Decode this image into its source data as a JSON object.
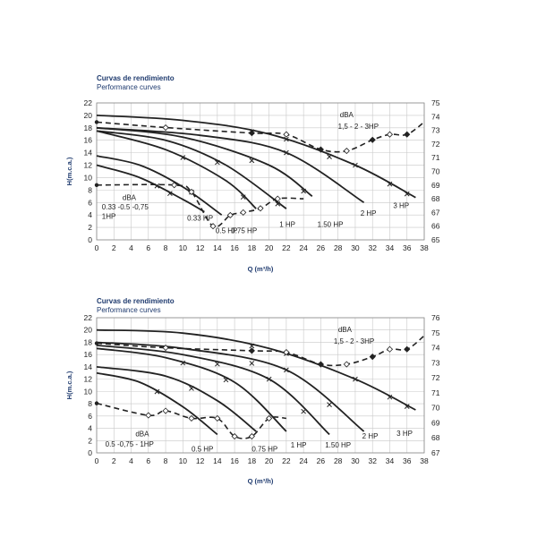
{
  "chart_data": [
    {
      "type": "line",
      "title": "Curvas de rendimiento",
      "subtitle": "Performance curves",
      "xlabel": "Q (m³/h)",
      "ylabel": "H(m.c.a.)",
      "xlim": [
        0,
        38
      ],
      "ylim": [
        0,
        22
      ],
      "y2lim": [
        65,
        75
      ],
      "xticks": [
        "0",
        "2",
        "4",
        "6",
        "8",
        "10",
        "12",
        "14",
        "16",
        "18",
        "20",
        "22",
        "24",
        "26",
        "28",
        "30",
        "32",
        "34",
        "36",
        "38"
      ],
      "yticks": [
        "0",
        "2",
        "4",
        "6",
        "8",
        "10",
        "12",
        "14",
        "16",
        "18",
        "20",
        "22"
      ],
      "y2ticks": [
        "65",
        "66",
        "67",
        "68",
        "69",
        "70",
        "71",
        "72",
        "73",
        "74",
        "75"
      ],
      "grid": true,
      "series": [
        {
          "name": "0.33 HP",
          "x": [
            0,
            5,
            10,
            12.5
          ],
          "y": [
            12,
            10,
            6.5,
            4.5
          ],
          "markers": [
            7,
            8.5
          ]
        },
        {
          "name": "0.5 HP",
          "x": [
            0,
            5,
            10,
            14.5
          ],
          "y": [
            13.5,
            12,
            8.5,
            4
          ],
          "markers": [
            11
          ]
        },
        {
          "name": "0.75 HP",
          "x": [
            0,
            8,
            15,
            18.5
          ],
          "y": [
            17.5,
            14.5,
            9.5,
            5
          ],
          "markers": [
            10,
            17
          ]
        },
        {
          "name": "1 HP",
          "x": [
            0,
            8,
            15,
            22
          ],
          "y": [
            17.5,
            16,
            12,
            5
          ],
          "markers": [
            14,
            21
          ]
        },
        {
          "name": "1.50 HP",
          "x": [
            0,
            10,
            20,
            25
          ],
          "y": [
            18,
            16.5,
            12,
            7
          ],
          "markers": [
            18,
            24
          ]
        },
        {
          "name": "2 HP",
          "x": [
            0,
            12,
            22,
            31
          ],
          "y": [
            18,
            16.8,
            14,
            6
          ],
          "markers": [
            22
          ]
        },
        {
          "name": "3 HP",
          "x": [
            0,
            10,
            20,
            30,
            37
          ],
          "y": [
            20,
            19.2,
            17,
            12,
            6.8
          ],
          "markers": [
            18,
            22,
            27,
            30,
            34,
            36
          ]
        }
      ],
      "dba_series": [
        {
          "name": "1,5 - 2 - 3HP",
          "x": [
            0,
            8,
            18,
            22,
            26,
            29,
            32,
            34,
            36,
            38
          ],
          "y": [
            73.6,
            73.2,
            72.8,
            72.7,
            71.6,
            71.5,
            72.3,
            72.7,
            72.7,
            73.6
          ]
        },
        {
          "name": "0.33 -0.5 -0,75 1HP",
          "x": [
            0,
            9,
            11,
            13.5,
            15.5,
            17,
            19,
            21,
            24
          ],
          "y": [
            69,
            69,
            68.5,
            66,
            66.8,
            67,
            67.3,
            68,
            68
          ]
        }
      ],
      "annotations": {
        "dba_right": "dBA",
        "dba_right_label": "1,5 - 2 - 3HP",
        "dba_left": "dBA",
        "dba_left_label_1": "0.33 -0.5 -0,75",
        "dba_left_label_2": "1HP",
        "curve_labels": [
          "0.33 HP",
          "0.5 HP",
          "0.75 HP",
          "1 HP",
          "1.50 HP",
          "2 HP",
          "3 HP"
        ]
      }
    },
    {
      "type": "line",
      "title": "Curvas de rendimiento",
      "subtitle": "Performance curves",
      "xlabel": "Q (m³/h)",
      "ylabel": "H(m.c.a.)",
      "xlim": [
        0,
        38
      ],
      "ylim": [
        0,
        22
      ],
      "y2lim": [
        67,
        76
      ],
      "xticks": [
        "0",
        "2",
        "4",
        "6",
        "8",
        "10",
        "12",
        "14",
        "16",
        "18",
        "20",
        "22",
        "24",
        "26",
        "28",
        "30",
        "32",
        "34",
        "36",
        "38"
      ],
      "yticks": [
        "0",
        "2",
        "4",
        "6",
        "8",
        "10",
        "12",
        "14",
        "16",
        "18",
        "20",
        "22"
      ],
      "y2ticks": [
        "67",
        "68",
        "69",
        "70",
        "71",
        "72",
        "73",
        "74",
        "75",
        "76"
      ],
      "grid": true,
      "series": [
        {
          "name": "0.5 HP",
          "x": [
            0,
            5,
            10,
            14
          ],
          "y": [
            13,
            11.5,
            7.5,
            3
          ],
          "markers": [
            7
          ]
        },
        {
          "name": "0.75 HP",
          "x": [
            0,
            8,
            14,
            18.5
          ],
          "y": [
            14,
            12.5,
            8.5,
            3.5
          ],
          "markers": [
            11
          ]
        },
        {
          "name": "1 HP",
          "x": [
            0,
            8,
            16,
            22
          ],
          "y": [
            17,
            15.5,
            11.5,
            3.5
          ],
          "markers": [
            10,
            15
          ]
        },
        {
          "name": "1.50 HP",
          "x": [
            0,
            10,
            20,
            27
          ],
          "y": [
            17.5,
            16,
            12,
            3
          ],
          "markers": [
            14,
            20,
            24
          ]
        },
        {
          "name": "2 HP",
          "x": [
            0,
            10,
            22,
            31
          ],
          "y": [
            18,
            17,
            13.5,
            3.5
          ],
          "markers": [
            18,
            22,
            27
          ]
        },
        {
          "name": "3 HP",
          "x": [
            0,
            10,
            20,
            30,
            37
          ],
          "y": [
            20,
            19.5,
            17,
            12,
            7
          ],
          "markers": [
            18,
            22,
            30,
            34,
            36
          ]
        }
      ],
      "dba_series": [
        {
          "name": "1,5 - 2 - 3HP",
          "x": [
            0,
            8,
            18,
            22,
            26,
            29,
            32,
            34,
            36,
            38
          ],
          "y": [
            74.3,
            74,
            73.8,
            73.7,
            72.9,
            72.9,
            73.4,
            73.9,
            73.9,
            74.8
          ]
        },
        {
          "name": "0.5 -0,75 - 1HP",
          "x": [
            0,
            6,
            8,
            11,
            14,
            16,
            18,
            20,
            22
          ],
          "y": [
            70.3,
            69.5,
            69.8,
            69.3,
            69.3,
            68.1,
            68.1,
            69.3,
            69.3
          ]
        }
      ],
      "annotations": {
        "dba_right": "dBA",
        "dba_right_label": "1,5 - 2 - 3HP",
        "dba_left": "dBA",
        "dba_left_label_1": "0.5 -0,75 - 1HP",
        "dba_left_label_2": "",
        "curve_labels": [
          "0.5 HP",
          "0.75 HP",
          "1 HP",
          "1.50 HP",
          "2 HP",
          "3 HP"
        ]
      }
    }
  ],
  "colors": {
    "curve": "#222222",
    "grid": "#c8c8c8",
    "title": "#1e3a6e",
    "background": "#ffffff"
  }
}
